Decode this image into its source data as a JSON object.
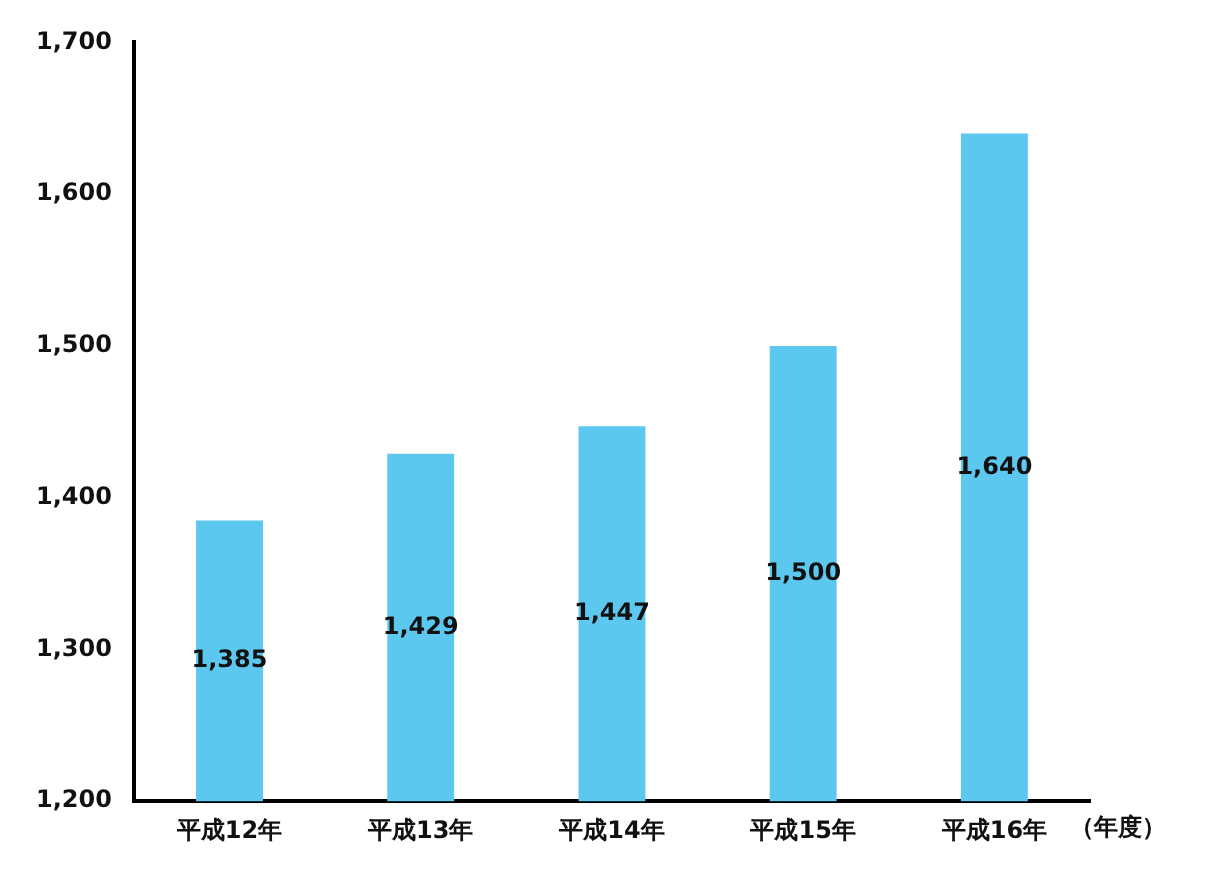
{
  "chart_data": {
    "type": "bar",
    "xlabel": "（年度）",
    "categories": [
      "平成12年",
      "平成13年",
      "平成14年",
      "平成15年",
      "平成16年"
    ],
    "values": [
      1385,
      1429,
      1447,
      1500,
      1640
    ],
    "value_labels": [
      "1,385",
      "1,429",
      "1,447",
      "1,500",
      "1,640"
    ],
    "color": "#5cc8f0",
    "ylim": [
      1200,
      1700
    ],
    "yticks": [
      {
        "value": 1200,
        "label": "1,200"
      },
      {
        "value": 1300,
        "label": "1,300"
      },
      {
        "value": 1400,
        "label": "1,400"
      },
      {
        "value": 1500,
        "label": "1,500"
      },
      {
        "value": 1600,
        "label": "1,600"
      },
      {
        "value": 1700,
        "label": "1,700"
      }
    ],
    "grid": false,
    "legend": false
  }
}
